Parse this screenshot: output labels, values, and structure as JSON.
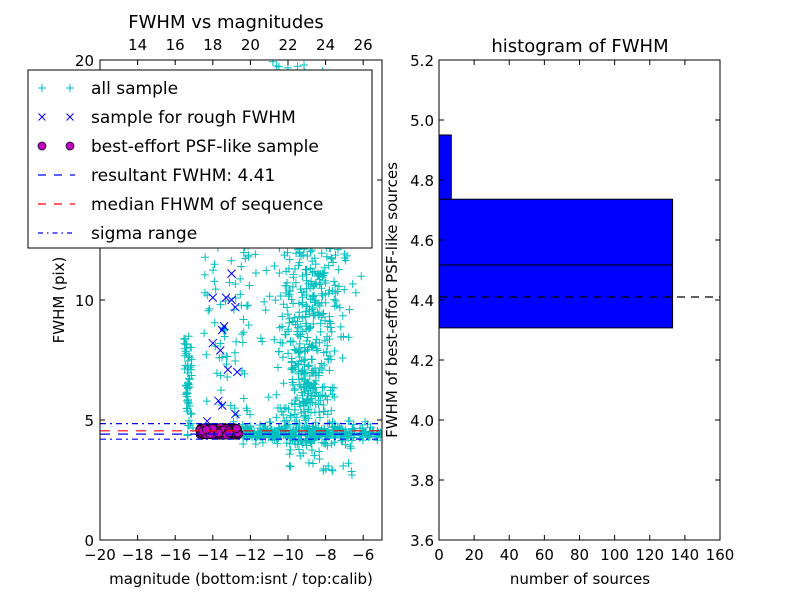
{
  "chart_data": [
    {
      "type": "scatter",
      "title": "FWHM vs magnitudes",
      "xlabel": "magnitude (bottom:isnt / top:calib)",
      "ylabel": "FWHM (pix)",
      "xlim": [
        -20,
        -5
      ],
      "ylim": [
        0,
        20
      ],
      "top_xlim": [
        12,
        27
      ],
      "xticks": [
        "−20",
        "−18",
        "−16",
        "−14",
        "−12",
        "−10",
        "−8",
        "−6"
      ],
      "xtick_values": [
        -20,
        -18,
        -16,
        -14,
        -12,
        -10,
        -8,
        -6
      ],
      "top_xticks": [
        "14",
        "16",
        "18",
        "20",
        "22",
        "24",
        "26"
      ],
      "top_xtick_values": [
        14,
        16,
        18,
        20,
        22,
        24,
        26
      ],
      "yticks": [
        "0",
        "5",
        "10",
        "20"
      ],
      "ytick_values": [
        0,
        5,
        10,
        20
      ],
      "legend_position": "upper-left",
      "legend": [
        {
          "label": "all sample",
          "marker": "plus",
          "color": "#00bfbf"
        },
        {
          "label": "sample for rough FWHM",
          "marker": "x",
          "color": "#0000ff"
        },
        {
          "label": "best-effort PSF-like sample",
          "marker": "circle",
          "color": "#bf00bf"
        },
        {
          "label": "resultant FWHM: 4.41",
          "marker": "dashed",
          "color": "#0000ff"
        },
        {
          "label": "median FHWM of sequence",
          "marker": "dashed",
          "color": "#ff0000"
        },
        {
          "label": "sigma range",
          "marker": "dashdot",
          "color": "#0000ff"
        }
      ],
      "hlines": {
        "resultant_fwhm": 4.41,
        "median_fwhm": 4.55,
        "sigma_upper": 4.85,
        "sigma_lower": 4.2
      },
      "series": [
        {
          "name": "sample for rough FWHM",
          "points": [
            [
              -13.0,
              11.1
            ],
            [
              -14.0,
              10.1
            ],
            [
              -13.3,
              10.1
            ],
            [
              -13.0,
              10.0
            ],
            [
              -12.8,
              9.7
            ],
            [
              -13.4,
              8.9
            ],
            [
              -13.5,
              8.75
            ],
            [
              -14.0,
              8.2
            ],
            [
              -13.6,
              7.9
            ],
            [
              -13.2,
              7.1
            ],
            [
              -12.7,
              7.0
            ],
            [
              -13.7,
              5.8
            ],
            [
              -13.5,
              5.6
            ],
            [
              -12.8,
              5.25
            ],
            [
              -14.3,
              4.95
            ]
          ]
        },
        {
          "name": "best-effort PSF-like sample",
          "x_range": [
            -14.9,
            -12.4
          ],
          "y_range": [
            4.3,
            4.75
          ],
          "count": 273
        },
        {
          "name": "all sample",
          "regions": [
            {
              "desc": "column",
              "x": [
                -15.5,
                -15.0
              ],
              "y": [
                4.3,
                8.5
              ],
              "n": 60
            },
            {
              "desc": "band",
              "x": [
                -12.4,
                -5.0
              ],
              "y": [
                4.1,
                4.8
              ],
              "n": 260
            },
            {
              "desc": "main cloud",
              "x": [
                -11.5,
                -7.5
              ],
              "y": [
                4.0,
                12.5
              ],
              "n": 520
            },
            {
              "desc": "sparse mid",
              "x": [
                -14.5,
                -12.0
              ],
              "y": [
                4.8,
                12.5
              ],
              "n": 70
            },
            {
              "desc": "low tail",
              "x": [
                -10.0,
                -6.5
              ],
              "y": [
                2.7,
                4.1
              ],
              "n": 30
            },
            {
              "desc": "top sparse",
              "x": [
                -11.5,
                -8.0
              ],
              "y": [
                12.5,
                20.0
              ],
              "n": 40
            }
          ]
        }
      ]
    },
    {
      "type": "bar",
      "orientation": "horizontal",
      "title": "histogram of FWHM",
      "xlabel": "number of sources",
      "ylabel": "FWHM of best-effort PSF-like sources",
      "xlim": [
        0,
        160
      ],
      "ylim": [
        3.6,
        5.2
      ],
      "xticks": [
        "0",
        "20",
        "40",
        "60",
        "80",
        "100",
        "120",
        "140",
        "160"
      ],
      "xtick_values": [
        0,
        20,
        40,
        60,
        80,
        100,
        120,
        140,
        160
      ],
      "yticks": [
        "3.6",
        "3.8",
        "4.0",
        "4.2",
        "4.4",
        "4.6",
        "4.8",
        "5.0",
        "5.2"
      ],
      "ytick_values": [
        3.6,
        3.8,
        4.0,
        4.2,
        4.4,
        4.6,
        4.8,
        5.0,
        5.2
      ],
      "bins": [
        {
          "from": 4.307,
          "to": 4.517,
          "count": 133
        },
        {
          "from": 4.517,
          "to": 4.736,
          "count": 133
        },
        {
          "from": 4.736,
          "to": 4.95,
          "count": 7
        }
      ],
      "bar_color": "#0000ff",
      "hline": 4.41
    }
  ]
}
